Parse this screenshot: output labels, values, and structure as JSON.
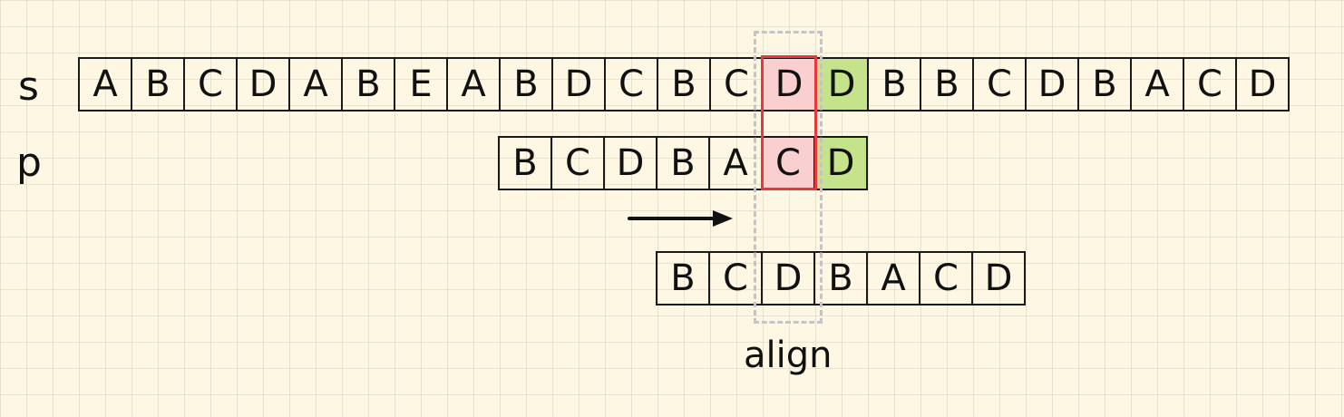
{
  "labels": {
    "s": "s",
    "p": "p",
    "align": "align"
  },
  "s": [
    "A",
    "B",
    "C",
    "D",
    "A",
    "B",
    "E",
    "A",
    "B",
    "D",
    "C",
    "B",
    "C",
    "D",
    "D",
    "B",
    "B",
    "C",
    "D",
    "B",
    "A",
    "C",
    "D"
  ],
  "p": [
    "B",
    "C",
    "D",
    "B",
    "A",
    "C",
    "D"
  ],
  "p_shifted": [
    "B",
    "C",
    "D",
    "B",
    "A",
    "C",
    "D"
  ],
  "highlights": {
    "s_mismatch_index": 13,
    "s_match_index": 14,
    "p_mismatch_index": 5,
    "p_match_index": 6
  },
  "colors": {
    "mismatch_fill": "#f9cfcf",
    "match_fill": "#c5e38a",
    "mismatch_border": "#e8373d",
    "align_dash": "#c4c4c4",
    "background": "#fdf7e4"
  }
}
